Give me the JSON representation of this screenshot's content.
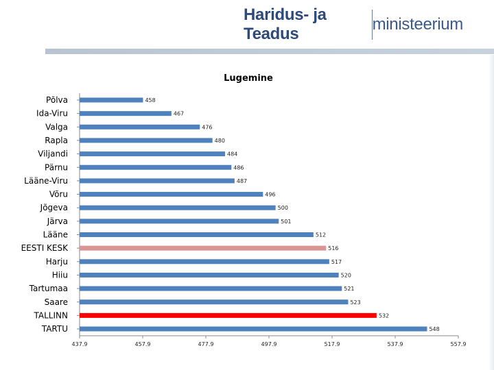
{
  "header": {
    "logo_part1": "Haridus- ja Teadus",
    "logo_part2": "ministeerium"
  },
  "chart_data": {
    "type": "bar",
    "orientation": "horizontal",
    "title": "Lugemine",
    "categories": [
      "Põlva",
      "Ida-Viru",
      "Valga",
      "Rapla",
      "Viljandi",
      "Pärnu",
      "Lääne-Viru",
      "Võru",
      "Jõgeva",
      "Järva",
      "Lääne",
      "EESTI KESK",
      "Harju",
      "Hiiu",
      "Tartumaa",
      "Saare",
      "TALLINN",
      "TARTU"
    ],
    "values": [
      458,
      467,
      476,
      480,
      484,
      486,
      487,
      496,
      500,
      501,
      512,
      516,
      517,
      520,
      521,
      523,
      532,
      548
    ],
    "colors": [
      "#4f81bd",
      "#4f81bd",
      "#4f81bd",
      "#4f81bd",
      "#4f81bd",
      "#4f81bd",
      "#4f81bd",
      "#4f81bd",
      "#4f81bd",
      "#4f81bd",
      "#4f81bd",
      "#d99694",
      "#4f81bd",
      "#4f81bd",
      "#4f81bd",
      "#4f81bd",
      "#ff0000",
      "#4f81bd"
    ],
    "xlim": [
      437.9,
      557.9
    ],
    "xticks": [
      437.9,
      457.9,
      477.9,
      497.9,
      517.9,
      537.9,
      557.9
    ],
    "xlabel": "",
    "ylabel": "",
    "grid": false
  }
}
